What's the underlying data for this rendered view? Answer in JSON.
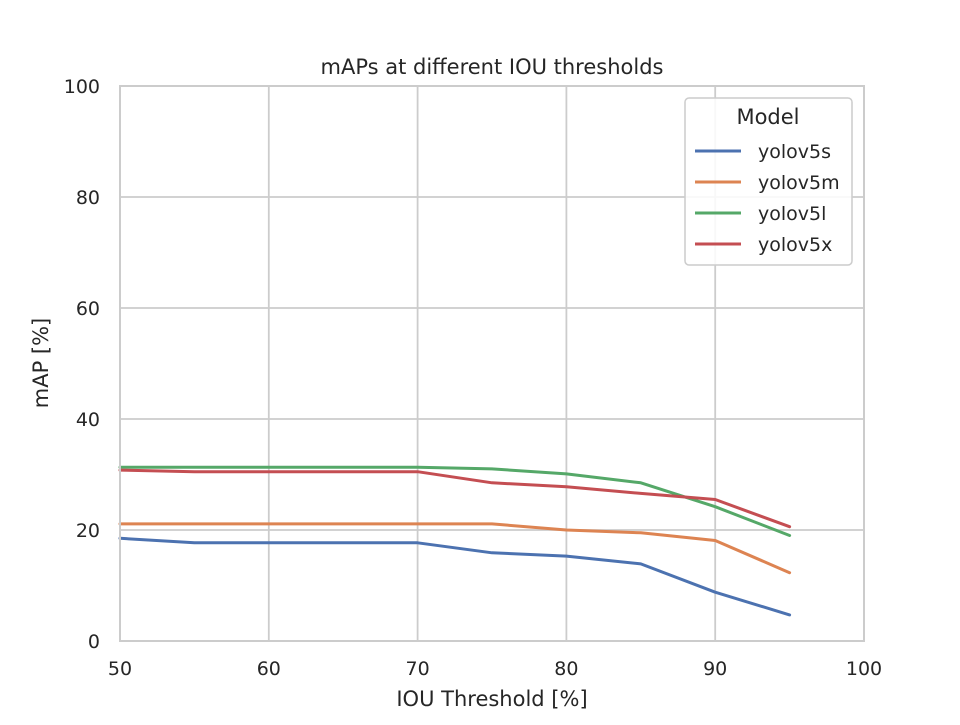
{
  "chart_data": {
    "type": "line",
    "title": "mAPs at different IOU thresholds",
    "xlabel": "IOU Threshold [%]",
    "ylabel": "mAP [%]",
    "xlim": [
      50,
      100
    ],
    "ylim": [
      0,
      100
    ],
    "xticks": [
      50,
      60,
      70,
      80,
      90,
      100
    ],
    "yticks": [
      0,
      20,
      40,
      60,
      80,
      100
    ],
    "grid": true,
    "legend": {
      "title": "Model",
      "placement": "top-right"
    },
    "x": [
      50,
      55,
      60,
      65,
      70,
      75,
      80,
      85,
      90,
      95
    ],
    "series": [
      {
        "name": "yolov5s",
        "color": "#4c72b0",
        "values": [
          18.5,
          17.7,
          17.7,
          17.7,
          17.7,
          15.9,
          15.3,
          13.9,
          8.8,
          4.7
        ]
      },
      {
        "name": "yolov5m",
        "color": "#dd8452",
        "values": [
          21.1,
          21.1,
          21.1,
          21.1,
          21.1,
          21.1,
          20.0,
          19.5,
          18.1,
          12.3
        ]
      },
      {
        "name": "yolov5l",
        "color": "#55a868",
        "values": [
          31.3,
          31.3,
          31.3,
          31.3,
          31.3,
          31.0,
          30.1,
          28.5,
          24.2,
          19.0
        ]
      },
      {
        "name": "yolov5x",
        "color": "#c44e52",
        "values": [
          30.8,
          30.5,
          30.5,
          30.5,
          30.5,
          28.5,
          27.8,
          26.6,
          25.5,
          20.6
        ]
      }
    ]
  }
}
